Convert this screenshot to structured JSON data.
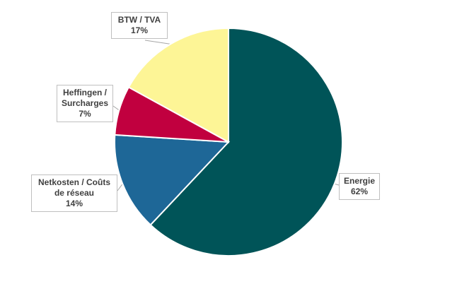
{
  "chart_data": {
    "type": "pie",
    "title": "",
    "legend": "none",
    "slices": [
      {
        "label_lines": [
          "Energie"
        ],
        "value": 62,
        "value_label": "62%",
        "color": "#005458"
      },
      {
        "label_lines": [
          "Netkosten / Coûts",
          "de réseau"
        ],
        "value": 14,
        "value_label": "14%",
        "color": "#1e6797"
      },
      {
        "label_lines": [
          "Heffingen /",
          "Surcharges"
        ],
        "value": 7,
        "value_label": "7%",
        "color": "#c1003f"
      },
      {
        "label_lines": [
          "BTW / TVA"
        ],
        "value": 17,
        "value_label": "17%",
        "color": "#fdf596"
      }
    ]
  }
}
